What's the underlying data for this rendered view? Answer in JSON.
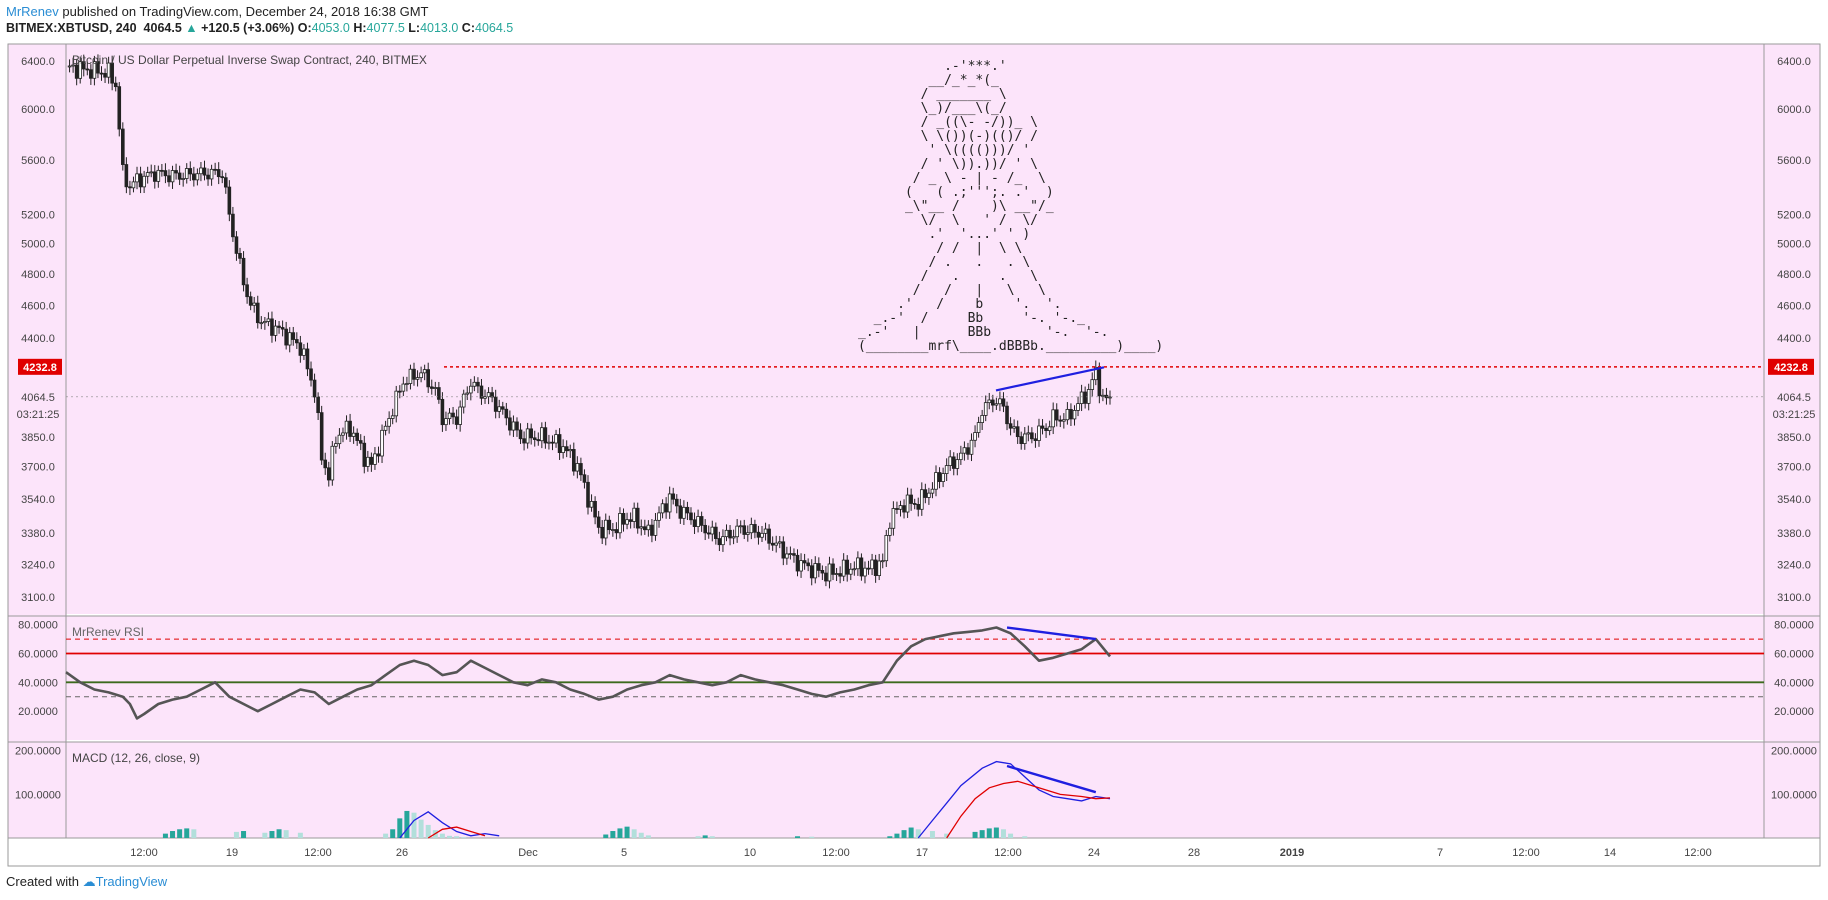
{
  "header": {
    "author": "MrRenev",
    "published": " published on TradingView.com, December 24, 2018 16:38 GMT",
    "symbol": "BITMEX:XBTUSD, 240",
    "last": "4064.5",
    "change": "+120.5 (+3.06%)",
    "o_label": "O:",
    "o_val": "4053.0",
    "h_label": "H:",
    "h_val": "4077.5",
    "l_label": "L:",
    "l_val": "4013.0",
    "c_label": "C:",
    "c_val": "4064.5"
  },
  "footer": {
    "created": "Created with",
    "brand": "TradingView"
  },
  "colors": {
    "background": "#fce4fa",
    "up": "#26a69a",
    "candle": "#222222",
    "resistance": "#e00000",
    "trendline": "#1f1fe0",
    "rsi": "#555555",
    "rsi_upper": "#e00000",
    "rsi_lower": "#3c6a1e",
    "macd": "#1f1fe0",
    "signal": "#e00000",
    "hist_dark": "#26a69a",
    "hist_light": "#b2dfdb"
  },
  "price_badge": "4232.8",
  "last_price_label": "4064.5",
  "countdown": "03:21:25",
  "ascii_art": [
    "           .-'***.'",
    "         __/_*_*(_",
    "        / _______ \\",
    "        \\_)/___\\(_/",
    "        / _((\\- -/))_ \\",
    "        \\ \\())(-)(()/ /",
    "         ' \\(((()))/ '",
    "        / ' \\)).))/ ' \\",
    "       / _ \\ - | - /_  \\",
    "      (   ( .;''';. .'  )",
    "      _\\\"__ /    )\\ __\"/_",
    "        \\/  \\   ' /  \\/",
    "         .'  '...' ' )",
    "          / /  |  \\ \\",
    "         / .   .   . \\",
    "        /   .     .   \\",
    "       /   /   |   \\   \\",
    "     .'   /    b    '.  '.",
    "  _.-'  /     Bb     '-. '-._",
    "_.-'   |      BBb       '-.  '-.",
    "(________mrf\\____.dBBBb._________)____)"
  ],
  "chart_data": [
    {
      "type": "candlestick",
      "title": "Bitcoin / US Dollar Perpetual Inverse Swap Contract, 240, BITMEX",
      "x_ticks": [
        "12:00",
        "19",
        "12:00",
        "26",
        "Dec",
        "5",
        "10",
        "12:00",
        "17",
        "12:00",
        "24",
        "28",
        "2019",
        "7",
        "12:00",
        "14",
        "12:00"
      ],
      "y_ticks": [
        "6400.0",
        "6000.0",
        "5600.0",
        "5200.0",
        "5000.0",
        "4800.0",
        "4600.0",
        "4400.0",
        "4064.5",
        "3850.0",
        "3700.0",
        "3540.0",
        "3380.0",
        "3240.0",
        "3100.0"
      ],
      "y_scale": "log",
      "ylim": [
        3030,
        6550
      ],
      "horizontal_line": 4232.8,
      "close_path": [
        [
          0,
          6350
        ],
        [
          12,
          6300
        ],
        [
          14,
          6200
        ],
        [
          16,
          5500
        ],
        [
          18,
          5400
        ],
        [
          20,
          5450
        ],
        [
          25,
          5500
        ],
        [
          30,
          5480
        ],
        [
          40,
          5500
        ],
        [
          44,
          5500
        ],
        [
          46,
          5200
        ],
        [
          48,
          4950
        ],
        [
          50,
          4750
        ],
        [
          52,
          4600
        ],
        [
          55,
          4500
        ],
        [
          60,
          4450
        ],
        [
          66,
          4350
        ],
        [
          70,
          4100
        ],
        [
          72,
          3750
        ],
        [
          74,
          3650
        ],
        [
          76,
          3850
        ],
        [
          80,
          3900
        ],
        [
          84,
          3750
        ],
        [
          86,
          3700
        ],
        [
          88,
          3800
        ],
        [
          92,
          4000
        ],
        [
          95,
          4150
        ],
        [
          100,
          4200
        ],
        [
          104,
          4100
        ],
        [
          106,
          3950
        ],
        [
          110,
          3950
        ],
        [
          112,
          4050
        ],
        [
          114,
          4150
        ],
        [
          116,
          4100
        ],
        [
          120,
          4050
        ],
        [
          124,
          3950
        ],
        [
          128,
          3850
        ],
        [
          134,
          3850
        ],
        [
          140,
          3800
        ],
        [
          144,
          3700
        ],
        [
          146,
          3600
        ],
        [
          150,
          3400
        ],
        [
          154,
          3400
        ],
        [
          158,
          3450
        ],
        [
          160,
          3450
        ],
        [
          164,
          3380
        ],
        [
          170,
          3550
        ],
        [
          172,
          3500
        ],
        [
          176,
          3450
        ],
        [
          180,
          3400
        ],
        [
          184,
          3350
        ],
        [
          190,
          3400
        ],
        [
          196,
          3380
        ],
        [
          202,
          3300
        ],
        [
          206,
          3250
        ],
        [
          210,
          3220
        ],
        [
          214,
          3200
        ],
        [
          218,
          3210
        ],
        [
          222,
          3230
        ],
        [
          226,
          3220
        ],
        [
          230,
          3250
        ],
        [
          232,
          3450
        ],
        [
          236,
          3520
        ],
        [
          240,
          3520
        ],
        [
          244,
          3600
        ],
        [
          248,
          3700
        ],
        [
          252,
          3750
        ],
        [
          256,
          3850
        ],
        [
          258,
          4000
        ],
        [
          262,
          4050
        ],
        [
          264,
          4000
        ],
        [
          266,
          3900
        ],
        [
          268,
          3850
        ],
        [
          272,
          3850
        ],
        [
          276,
          3900
        ],
        [
          278,
          3950
        ],
        [
          282,
          3950
        ],
        [
          284,
          4000
        ],
        [
          286,
          4050
        ],
        [
          288,
          4100
        ],
        [
          290,
          4200
        ],
        [
          292,
          4050
        ]
      ],
      "trendline_price": [
        [
          4100,
          4150
        ],
        [
          4230,
          4230
        ]
      ]
    },
    {
      "type": "line",
      "title": "MrRenev RSI",
      "y_ticks": [
        "80.0000",
        "60.0000",
        "40.0000",
        "20.0000"
      ],
      "ylim": [
        0,
        86
      ],
      "levels": {
        "dashed_upper": 70,
        "solid_upper": 60,
        "solid_lower": 40,
        "dashed_lower": 30
      },
      "rsi": [
        [
          0,
          47
        ],
        [
          4,
          40
        ],
        [
          8,
          35
        ],
        [
          12,
          33
        ],
        [
          16,
          30
        ],
        [
          18,
          25
        ],
        [
          20,
          15
        ],
        [
          22,
          18
        ],
        [
          26,
          25
        ],
        [
          30,
          28
        ],
        [
          34,
          30
        ],
        [
          38,
          35
        ],
        [
          42,
          40
        ],
        [
          46,
          30
        ],
        [
          50,
          25
        ],
        [
          54,
          20
        ],
        [
          58,
          25
        ],
        [
          62,
          30
        ],
        [
          66,
          35
        ],
        [
          70,
          33
        ],
        [
          74,
          25
        ],
        [
          78,
          30
        ],
        [
          82,
          35
        ],
        [
          86,
          38
        ],
        [
          90,
          45
        ],
        [
          94,
          52
        ],
        [
          98,
          55
        ],
        [
          102,
          52
        ],
        [
          106,
          45
        ],
        [
          110,
          47
        ],
        [
          114,
          55
        ],
        [
          118,
          50
        ],
        [
          122,
          45
        ],
        [
          126,
          40
        ],
        [
          130,
          38
        ],
        [
          134,
          42
        ],
        [
          138,
          40
        ],
        [
          142,
          35
        ],
        [
          146,
          32
        ],
        [
          150,
          28
        ],
        [
          154,
          30
        ],
        [
          158,
          35
        ],
        [
          162,
          38
        ],
        [
          166,
          40
        ],
        [
          170,
          45
        ],
        [
          174,
          42
        ],
        [
          178,
          40
        ],
        [
          182,
          38
        ],
        [
          186,
          40
        ],
        [
          190,
          45
        ],
        [
          194,
          42
        ],
        [
          198,
          40
        ],
        [
          202,
          38
        ],
        [
          206,
          35
        ],
        [
          210,
          32
        ],
        [
          214,
          30
        ],
        [
          218,
          33
        ],
        [
          222,
          35
        ],
        [
          226,
          38
        ],
        [
          230,
          40
        ],
        [
          234,
          55
        ],
        [
          238,
          65
        ],
        [
          242,
          70
        ],
        [
          246,
          72
        ],
        [
          250,
          74
        ],
        [
          254,
          75
        ],
        [
          258,
          76
        ],
        [
          262,
          78
        ],
        [
          266,
          74
        ],
        [
          270,
          65
        ],
        [
          274,
          55
        ],
        [
          278,
          57
        ],
        [
          282,
          60
        ],
        [
          286,
          63
        ],
        [
          290,
          70
        ],
        [
          294,
          58
        ]
      ],
      "trendline": [
        [
          265,
          78
        ],
        [
          290,
          70
        ]
      ]
    },
    {
      "type": "bar",
      "title": "MACD (12, 26, close, 9)",
      "y_ticks": [
        "200.0000",
        "100.0000"
      ],
      "ylim": [
        0,
        220
      ],
      "macd": [
        [
          94,
          0
        ],
        [
          98,
          40
        ],
        [
          102,
          60
        ],
        [
          106,
          35
        ],
        [
          110,
          15
        ],
        [
          114,
          5
        ],
        [
          118,
          10
        ],
        [
          122,
          5
        ],
        [
          240,
          0
        ],
        [
          244,
          40
        ],
        [
          248,
          80
        ],
        [
          252,
          120
        ],
        [
          258,
          160
        ],
        [
          262,
          175
        ],
        [
          266,
          170
        ],
        [
          270,
          140
        ],
        [
          274,
          110
        ],
        [
          278,
          95
        ],
        [
          282,
          90
        ],
        [
          286,
          85
        ],
        [
          290,
          95
        ],
        [
          294,
          90
        ]
      ],
      "signal": [
        [
          102,
          0
        ],
        [
          106,
          20
        ],
        [
          110,
          25
        ],
        [
          114,
          15
        ],
        [
          118,
          5
        ],
        [
          248,
          0
        ],
        [
          252,
          50
        ],
        [
          256,
          90
        ],
        [
          260,
          115
        ],
        [
          264,
          125
        ],
        [
          268,
          130
        ],
        [
          272,
          120
        ],
        [
          276,
          110
        ],
        [
          280,
          100
        ],
        [
          286,
          95
        ],
        [
          290,
          90
        ],
        [
          294,
          92
        ]
      ],
      "histogram": [
        [
          28,
          10
        ],
        [
          30,
          16
        ],
        [
          32,
          20
        ],
        [
          34,
          22
        ],
        [
          36,
          20
        ],
        [
          48,
          14
        ],
        [
          50,
          16
        ],
        [
          56,
          12
        ],
        [
          58,
          16
        ],
        [
          60,
          20
        ],
        [
          62,
          18
        ],
        [
          66,
          12
        ],
        [
          90,
          10
        ],
        [
          92,
          20
        ],
        [
          94,
          45
        ],
        [
          96,
          62
        ],
        [
          98,
          58
        ],
        [
          100,
          42
        ],
        [
          102,
          30
        ],
        [
          104,
          18
        ],
        [
          106,
          10
        ],
        [
          108,
          5
        ],
        [
          110,
          4
        ],
        [
          112,
          2
        ],
        [
          152,
          8
        ],
        [
          154,
          16
        ],
        [
          156,
          22
        ],
        [
          158,
          26
        ],
        [
          160,
          20
        ],
        [
          162,
          12
        ],
        [
          164,
          6
        ],
        [
          178,
          4
        ],
        [
          180,
          6
        ],
        [
          182,
          4
        ],
        [
          206,
          4
        ],
        [
          210,
          3
        ],
        [
          232,
          4
        ],
        [
          234,
          10
        ],
        [
          236,
          18
        ],
        [
          238,
          24
        ],
        [
          240,
          20
        ],
        [
          244,
          16
        ],
        [
          248,
          10
        ],
        [
          256,
          14
        ],
        [
          258,
          18
        ],
        [
          260,
          22
        ],
        [
          262,
          24
        ],
        [
          264,
          20
        ],
        [
          266,
          10
        ],
        [
          270,
          4
        ]
      ],
      "trendline": [
        [
          265,
          165
        ],
        [
          290,
          105
        ]
      ]
    }
  ]
}
